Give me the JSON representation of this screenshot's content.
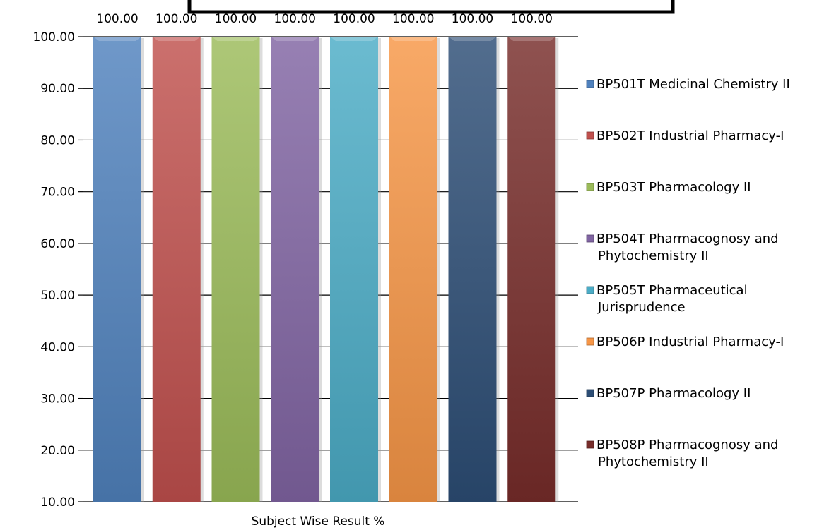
{
  "chart_data": {
    "type": "bar",
    "categories": [
      "Subject Wise Result %"
    ],
    "xlabel": "Subject Wise Result %",
    "ylabel": "",
    "ylim": [
      10,
      100
    ],
    "yticks": [
      "10.00",
      "20.00",
      "30.00",
      "40.00",
      "50.00",
      "60.00",
      "70.00",
      "80.00",
      "90.00",
      "100.00"
    ],
    "grid": "horizontal",
    "legend_position": "right",
    "series": [
      {
        "name": "BP501T Medicinal Chemistry II",
        "values": [
          100.0
        ],
        "label": "100.00",
        "color": "#4F81BD"
      },
      {
        "name": "BP502T Industrial Pharmacy-I",
        "values": [
          100.0
        ],
        "label": "100.00",
        "color": "#C0504D"
      },
      {
        "name": "BP503T Pharmacology II",
        "values": [
          100.0
        ],
        "label": "100.00",
        "color": "#9BBB59"
      },
      {
        "name": "BP504T Pharmacognosy and Phytochemistry II",
        "values": [
          100.0
        ],
        "label": "100.00",
        "color": "#8064A2"
      },
      {
        "name": "BP505T Pharmaceutical Jurisprudence",
        "values": [
          100.0
        ],
        "label": "100.00",
        "color": "#4BACC6"
      },
      {
        "name": "BP506P Industrial Pharmacy-I",
        "values": [
          100.0
        ],
        "label": "100.00",
        "color": "#F79646"
      },
      {
        "name": "BP507P Pharmacology II",
        "values": [
          100.0
        ],
        "label": "100.00",
        "color": "#2C4D75"
      },
      {
        "name": "BP508P Pharmacognosy and Phytochemistry II",
        "values": [
          100.0
        ],
        "label": "100.00",
        "color": "#772C2A"
      }
    ]
  }
}
